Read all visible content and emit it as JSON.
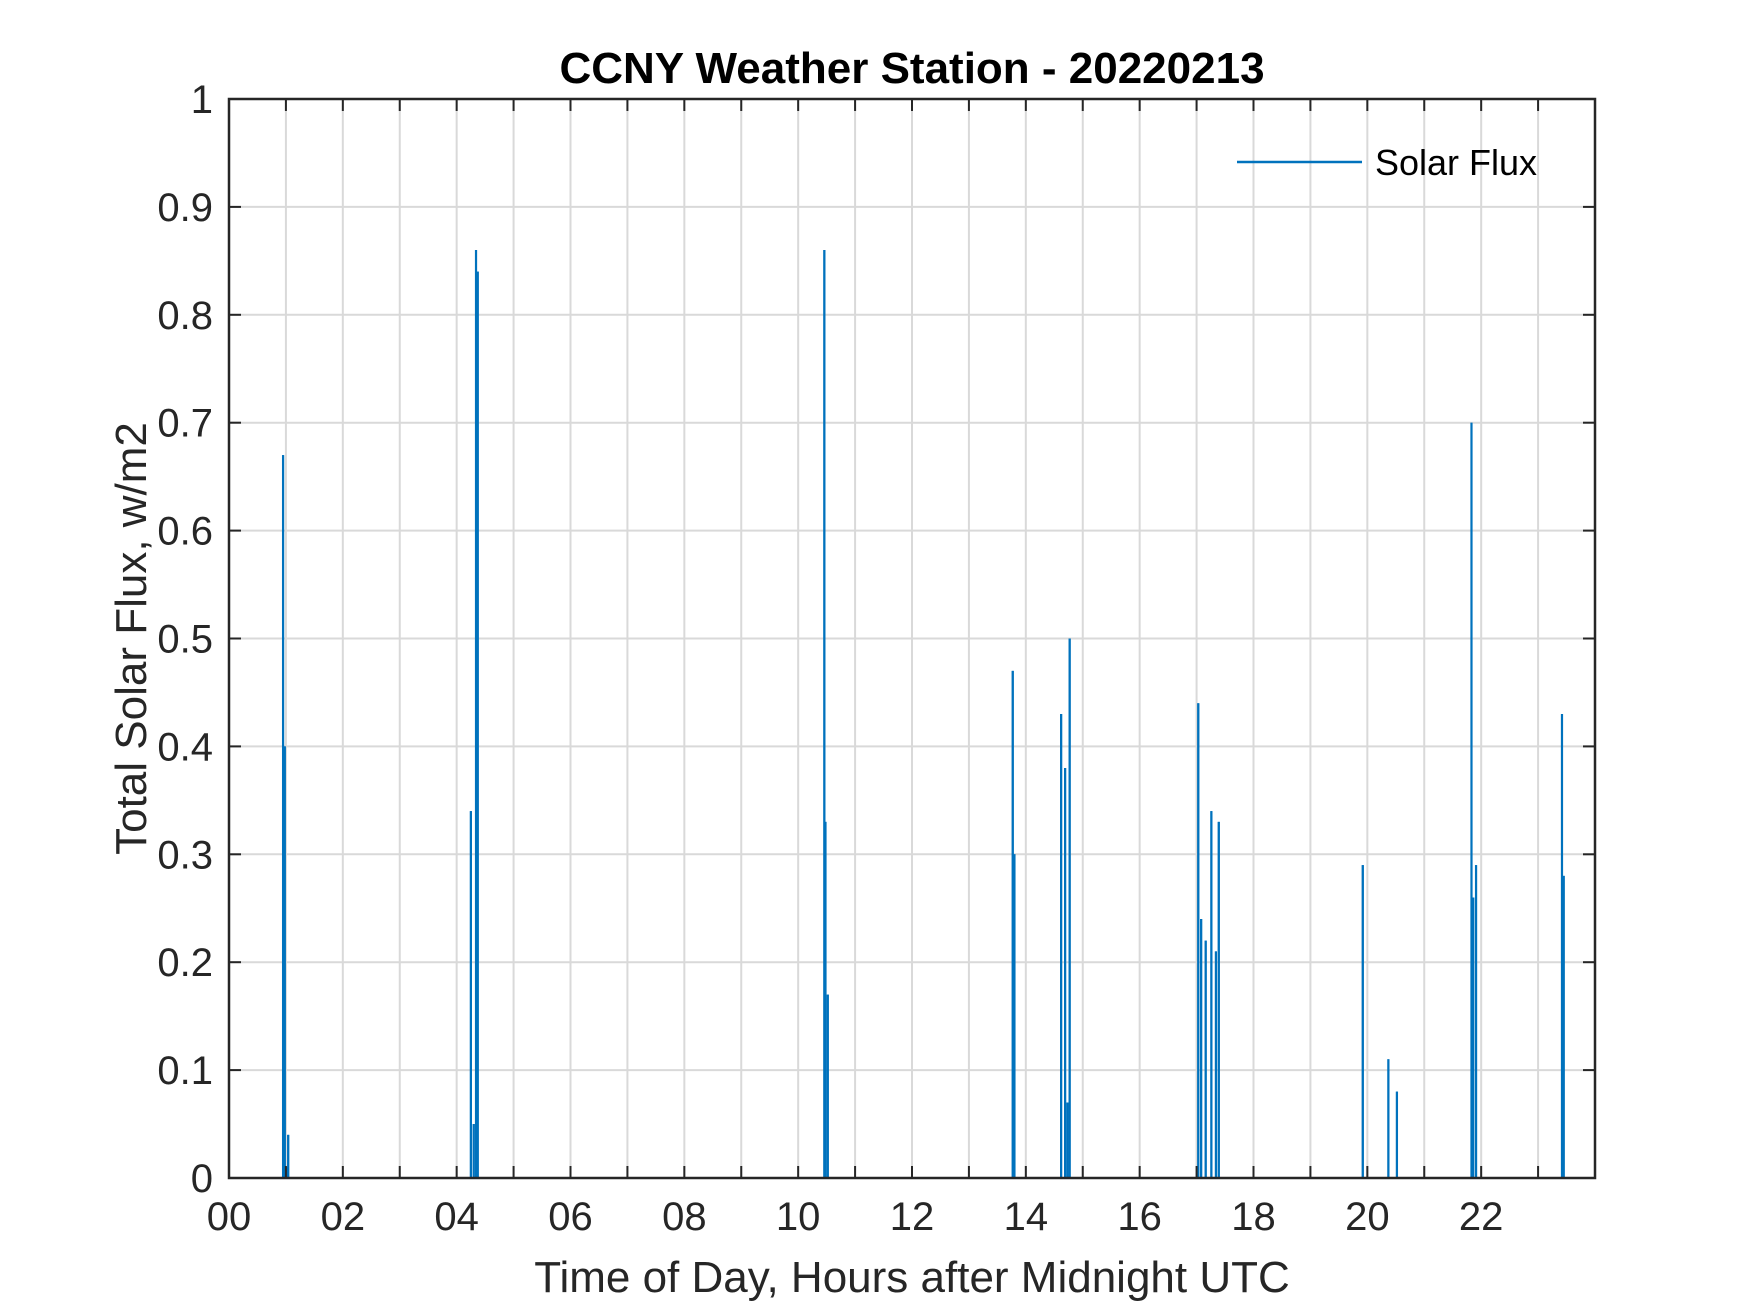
{
  "chart_data": {
    "type": "line",
    "title": "CCNY Weather Station - 20220213",
    "xlabel": "Time of Day, Hours after Midnight UTC",
    "ylabel": "Total Solar Flux, w/m2",
    "xlim": [
      0,
      24
    ],
    "ylim": [
      0,
      1
    ],
    "x_ticks": [
      0,
      2,
      4,
      6,
      8,
      10,
      12,
      14,
      16,
      18,
      20,
      22
    ],
    "x_tick_labels": [
      "00",
      "02",
      "04",
      "06",
      "08",
      "10",
      "12",
      "14",
      "16",
      "18",
      "20",
      "22"
    ],
    "x_grid_step": 1,
    "y_ticks": [
      0,
      0.1,
      0.2,
      0.3,
      0.4,
      0.5,
      0.6,
      0.7,
      0.8,
      0.9,
      1
    ],
    "y_tick_labels": [
      "0",
      "0.1",
      "0.2",
      "0.3",
      "0.4",
      "0.5",
      "0.6",
      "0.7",
      "0.8",
      "0.9",
      "1"
    ],
    "grid": true,
    "legend_position": "top-right",
    "series": [
      {
        "name": "Solar Flux",
        "color": "#0072BD",
        "spikes": [
          [
            0.95,
            0.67
          ],
          [
            0.98,
            0.4
          ],
          [
            1.02,
            0.01
          ],
          [
            1.04,
            0.04
          ],
          [
            4.25,
            0.34
          ],
          [
            4.3,
            0.05
          ],
          [
            4.34,
            0.86
          ],
          [
            4.37,
            0.84
          ],
          [
            10.46,
            0.86
          ],
          [
            10.48,
            0.33
          ],
          [
            10.52,
            0.17
          ],
          [
            13.77,
            0.47
          ],
          [
            13.8,
            0.3
          ],
          [
            14.62,
            0.43
          ],
          [
            14.69,
            0.38
          ],
          [
            14.73,
            0.07
          ],
          [
            14.77,
            0.5
          ],
          [
            17.03,
            0.44
          ],
          [
            17.08,
            0.24
          ],
          [
            17.16,
            0.22
          ],
          [
            17.26,
            0.34
          ],
          [
            17.34,
            0.21
          ],
          [
            17.39,
            0.33
          ],
          [
            19.92,
            0.29
          ],
          [
            20.37,
            0.11
          ],
          [
            20.52,
            0.08
          ],
          [
            21.83,
            0.7
          ],
          [
            21.86,
            0.26
          ],
          [
            21.91,
            0.29
          ],
          [
            23.42,
            0.43
          ],
          [
            23.45,
            0.28
          ]
        ]
      }
    ]
  }
}
